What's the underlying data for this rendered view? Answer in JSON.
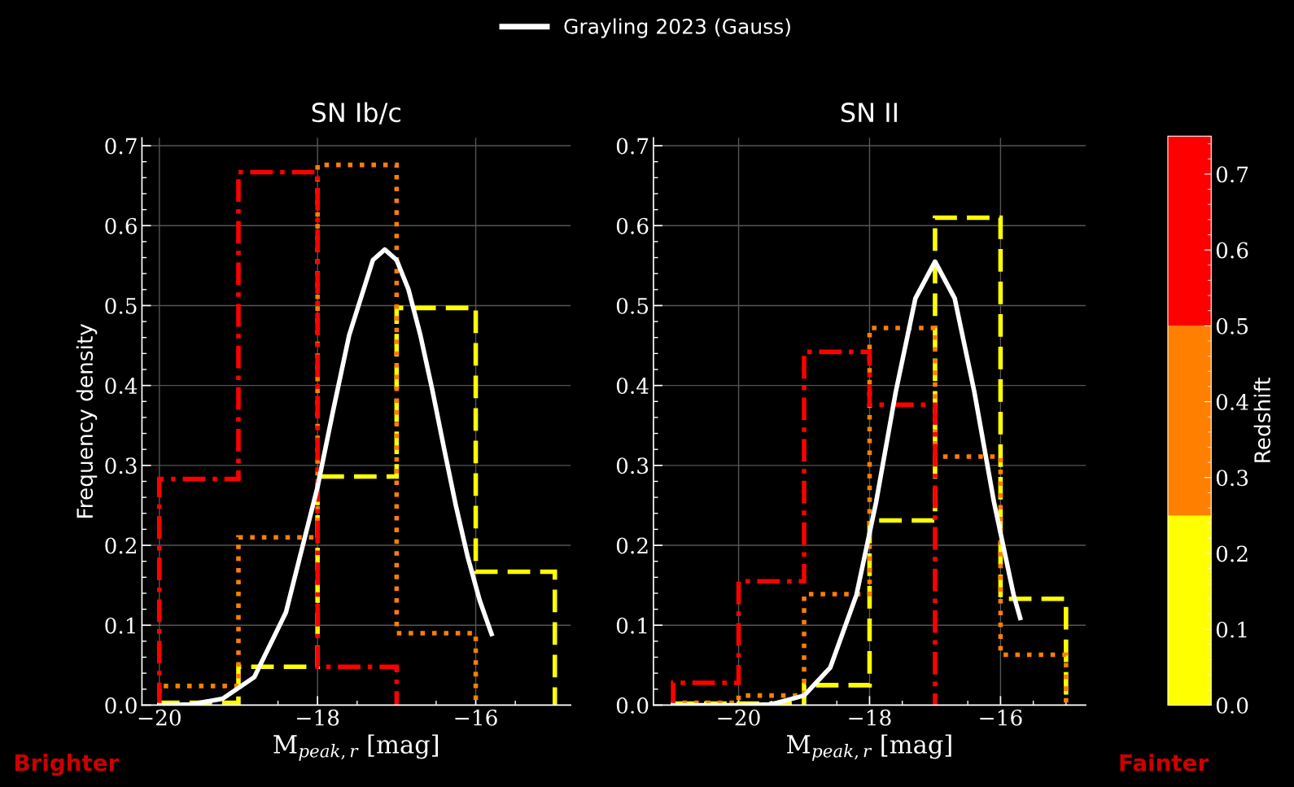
{
  "chart_data": [
    {
      "type": "histogram",
      "title": "SN Ib/c",
      "xlabel": "M$_{peak,r}$ [mag]",
      "ylabel": "Frequency density",
      "xlim": [
        -20.22,
        -14.8
      ],
      "ylim": [
        0,
        0.71
      ],
      "xticks": [
        {
          "value": -20,
          "label": "−20"
        },
        {
          "value": -18,
          "label": "−18"
        },
        {
          "value": -16,
          "label": "−16"
        }
      ],
      "yticks": [
        {
          "value": 0,
          "label": "0.0"
        },
        {
          "value": 0.1,
          "label": "0.1"
        },
        {
          "value": 0.2,
          "label": "0.2"
        },
        {
          "value": 0.3,
          "label": "0.3"
        },
        {
          "value": 0.4,
          "label": "0.4"
        },
        {
          "value": 0.5,
          "label": "0.5"
        },
        {
          "value": 0.6,
          "label": "0.6"
        },
        {
          "value": 0.7,
          "label": "0.7"
        }
      ],
      "grid": true,
      "legend": "top",
      "annotations": [
        "Brighter"
      ],
      "series": [
        {
          "color": "#ffff00",
          "line_style": "dashed",
          "bins": [
            -20,
            -19,
            -18,
            -17,
            -16,
            -15
          ],
          "values": [
            0.003,
            0.048,
            0.286,
            0.497,
            0.167
          ]
        },
        {
          "color": "#ff7f00",
          "line_style": "dotted",
          "bins": [
            -20,
            -19,
            -18,
            -17,
            -16
          ],
          "values": [
            0.024,
            0.21,
            0.676,
            0.09
          ]
        },
        {
          "color": "#ff0000",
          "line_style": "dashdot",
          "bins": [
            -20,
            -19,
            -18,
            -17
          ],
          "values": [
            0.283,
            0.667,
            0.048
          ]
        },
        {
          "type": "line",
          "name": "Grayling 2023 (Gauss)",
          "color": "#ffffff",
          "line_style": "solid",
          "x": [
            -20,
            -19.6,
            -19.2,
            -18.8,
            -18.4,
            -18.0,
            -17.8,
            -17.6,
            -17.3,
            -17.15,
            -17.0,
            -16.85,
            -16.7,
            -16.55,
            -16.4,
            -16.25,
            -16.1,
            -15.95,
            -15.8
          ],
          "values": [
            0.0,
            0.001,
            0.008,
            0.035,
            0.116,
            0.273,
            0.37,
            0.463,
            0.557,
            0.57,
            0.557,
            0.52,
            0.463,
            0.395,
            0.321,
            0.249,
            0.185,
            0.131,
            0.089
          ]
        }
      ]
    },
    {
      "type": "histogram",
      "title": "SN II",
      "xlabel": "M$_{peak,r}$ [mag]",
      "xlim": [
        -21.3,
        -14.7
      ],
      "ylim": [
        0,
        0.71
      ],
      "xticks": [
        {
          "value": -20,
          "label": "−20"
        },
        {
          "value": -18,
          "label": "−18"
        },
        {
          "value": -16,
          "label": "−16"
        }
      ],
      "yticks": [
        {
          "value": 0,
          "label": "0.0"
        },
        {
          "value": 0.1,
          "label": "0.1"
        },
        {
          "value": 0.2,
          "label": "0.2"
        },
        {
          "value": 0.3,
          "label": "0.3"
        },
        {
          "value": 0.4,
          "label": "0.4"
        },
        {
          "value": 0.5,
          "label": "0.5"
        },
        {
          "value": 0.6,
          "label": "0.6"
        },
        {
          "value": 0.7,
          "label": "0.7"
        }
      ],
      "grid": true,
      "annotations": [
        "Fainter"
      ],
      "clabel": "Redshift",
      "clim": [
        0,
        0.75
      ],
      "cticks": [
        {
          "value": 0,
          "label": "0.0"
        },
        {
          "value": 0.1,
          "label": "0.1"
        },
        {
          "value": 0.2,
          "label": "0.2"
        },
        {
          "value": 0.3,
          "label": "0.3"
        },
        {
          "value": 0.4,
          "label": "0.4"
        },
        {
          "value": 0.5,
          "label": "0.5"
        },
        {
          "value": 0.6,
          "label": "0.6"
        },
        {
          "value": 0.7,
          "label": "0.7"
        }
      ],
      "series": [
        {
          "color": "#ffff00",
          "line_style": "dashed",
          "bins": [
            -21,
            -20,
            -19,
            -18,
            -17,
            -16,
            -15
          ],
          "values": [
            0.002,
            0.002,
            0.025,
            0.231,
            0.61,
            0.133
          ]
        },
        {
          "color": "#ff7f00",
          "line_style": "dotted",
          "bins": [
            -21,
            -20,
            -19,
            -18,
            -17,
            -16,
            -15
          ],
          "values": [
            0.003,
            0.012,
            0.139,
            0.472,
            0.311,
            0.063
          ]
        },
        {
          "color": "#ff0000",
          "line_style": "dashdot",
          "bins": [
            -21,
            -20,
            -19,
            -18,
            -17
          ],
          "values": [
            0.028,
            0.155,
            0.442,
            0.376
          ]
        },
        {
          "type": "line",
          "color": "#ffffff",
          "line_style": "solid",
          "x": [
            -21,
            -20,
            -19.5,
            -19.0,
            -18.6,
            -18.2,
            -17.9,
            -17.6,
            -17.3,
            -17.0,
            -16.7,
            -16.4,
            -16.1,
            -15.8,
            -15.7
          ],
          "values": [
            0.0,
            0.0,
            0.001,
            0.012,
            0.047,
            0.138,
            0.254,
            0.392,
            0.509,
            0.555,
            0.509,
            0.392,
            0.254,
            0.138,
            0.109
          ]
        }
      ]
    }
  ]
}
